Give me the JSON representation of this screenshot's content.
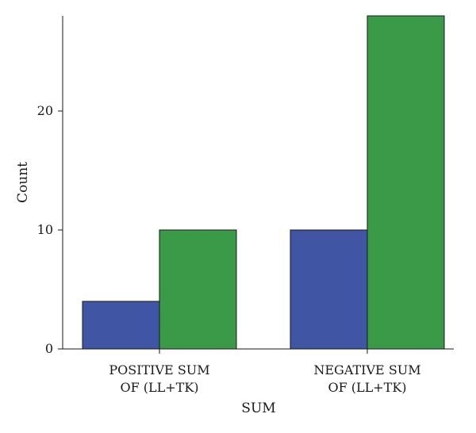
{
  "chart_data": {
    "type": "bar",
    "title": "",
    "xlabel": "SUM",
    "ylabel": "Count",
    "ylim": [
      0,
      28
    ],
    "yticks": [
      0,
      10,
      20
    ],
    "grid": false,
    "categories": [
      {
        "lines": [
          "POSITIVE SUM",
          "OF (LL+TK)"
        ]
      },
      {
        "lines": [
          "NEGATIVE SUM",
          "OF (LL+TK)"
        ]
      }
    ],
    "series": [
      {
        "color": "#4055a4",
        "values": [
          4,
          10
        ]
      },
      {
        "color": "#3b9a48",
        "values": [
          10,
          28
        ]
      }
    ]
  }
}
